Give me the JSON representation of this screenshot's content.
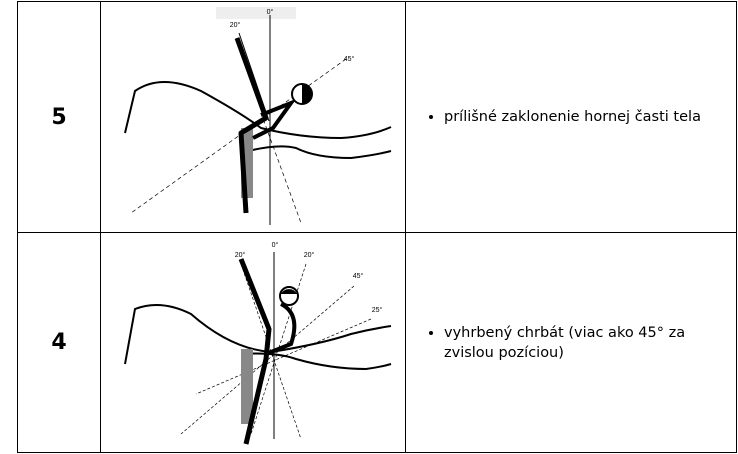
{
  "table": {
    "rows": [
      {
        "score": "5",
        "angles": [
          "20°",
          "0°",
          "45°"
        ],
        "bullet": "príliš­né zaklonenie hornej časti tela"
      },
      {
        "score": "4",
        "angles": [
          "20°",
          "0°",
          "20°",
          "45°",
          "25°"
        ],
        "bullet": "vyhrbený chrbát (viac ako 45° za zvislou pozíciou)"
      }
    ]
  }
}
